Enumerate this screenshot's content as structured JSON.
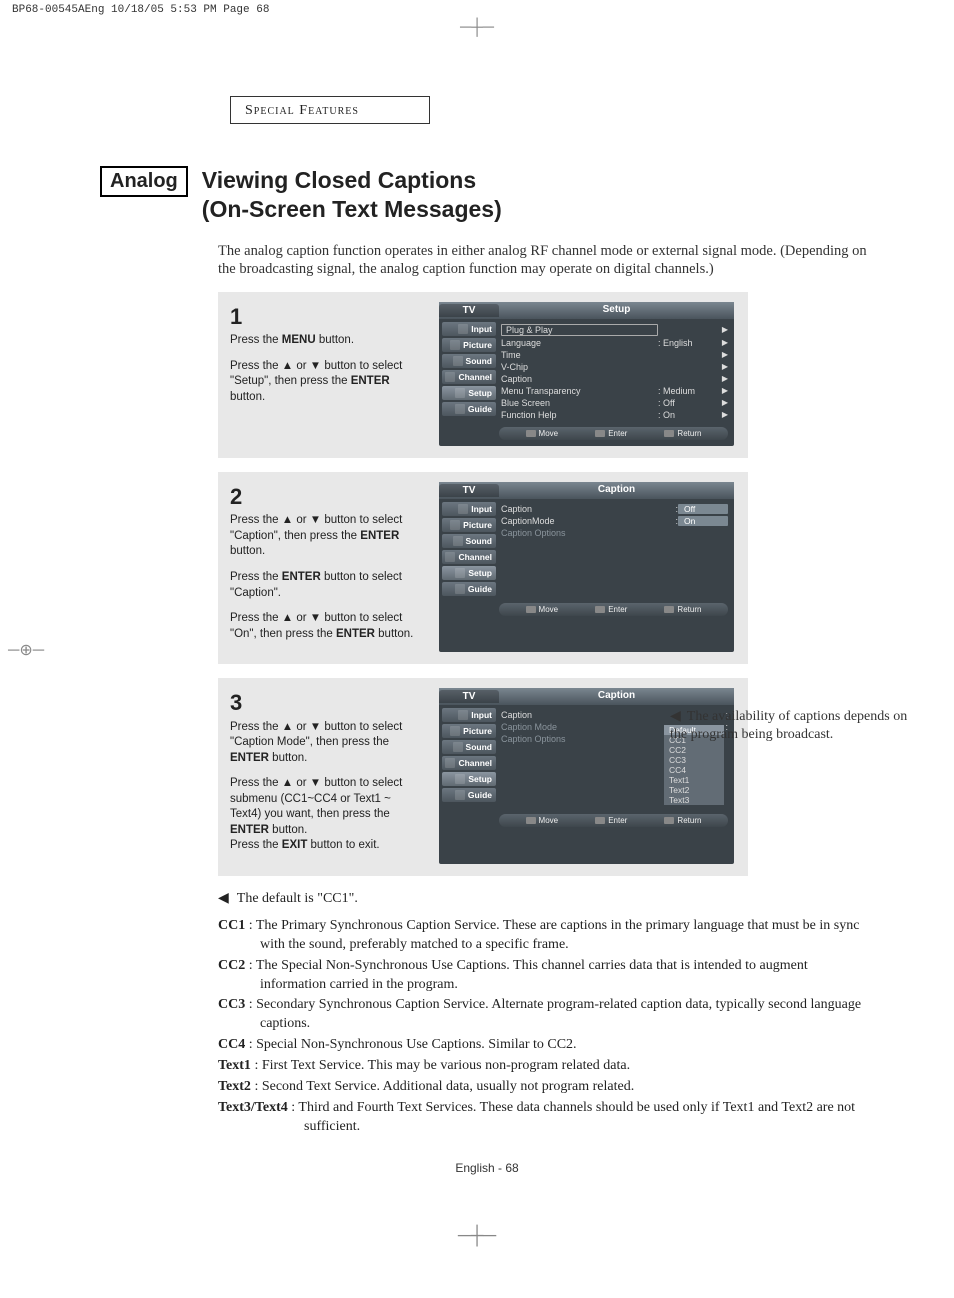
{
  "print": {
    "header": "BP68-00545AEng  10/18/05  5:53 PM  Page 68"
  },
  "section": {
    "title": "Special Features"
  },
  "badge": {
    "text": "Analog"
  },
  "title": {
    "line1": "Viewing Closed Captions",
    "line2": "(On-Screen Text Messages)"
  },
  "intro": "The analog caption function operates in either analog RF channel mode or external signal mode. (Depending on the broadcasting signal, the analog caption function may operate on digital channels.)",
  "steps": [
    {
      "num": "1",
      "paras": [
        "Press the <b>MENU</b> button.",
        "Press the ▲ or ▼ button to select \"Setup\", then press the <b>ENTER</b> button."
      ],
      "osd": {
        "tab": "TV",
        "title": "Setup",
        "side": [
          "Input",
          "Picture",
          "Sound",
          "Channel",
          "Setup",
          "Guide"
        ],
        "sideSel": 4,
        "rows": [
          {
            "lbl": "Plug & Play",
            "val": "",
            "arr": "▶",
            "box": true
          },
          {
            "lbl": "Language",
            "val": ": English",
            "arr": "▶"
          },
          {
            "lbl": "Time",
            "val": "",
            "arr": "▶"
          },
          {
            "lbl": "V-Chip",
            "val": "",
            "arr": "▶"
          },
          {
            "lbl": "Caption",
            "val": "",
            "arr": "▶"
          },
          {
            "lbl": "Menu Transparency",
            "val": ": Medium",
            "arr": "▶"
          },
          {
            "lbl": "Blue Screen",
            "val": ": Off",
            "arr": "▶"
          },
          {
            "lbl": "Function Help",
            "val": ": On",
            "arr": "▶"
          }
        ],
        "footer": [
          "Move",
          "Enter",
          "Return"
        ]
      }
    },
    {
      "num": "2",
      "paras": [
        "Press the ▲ or ▼ button to select \"Caption\", then press the <b>ENTER</b> button.",
        "Press the <b>ENTER</b> button to select \"Caption\".",
        "Press the ▲ or ▼ button to select \"On\", then press the <b>ENTER</b> button."
      ],
      "osd": {
        "tab": "TV",
        "title": "Caption",
        "side": [
          "Input",
          "Picture",
          "Sound",
          "Channel",
          "Setup",
          "Guide"
        ],
        "sideSel": 4,
        "rows": [
          {
            "lbl": "Caption",
            "pill": "Off",
            "colon": ":"
          },
          {
            "lbl": "CaptionMode",
            "pill": "On",
            "colon": ":"
          },
          {
            "lbl": "Caption Options",
            "dim": true
          }
        ],
        "footer": [
          "Move",
          "Enter",
          "Return"
        ],
        "tall": true
      }
    },
    {
      "num": "3",
      "paras": [
        "Press the ▲ or ▼ button to select \"Caption Mode\", then press the <b>ENTER</b> button.",
        "Press the ▲ or ▼ button to select  submenu (CC1~CC4 or Text1 ~ Text4) you want, then press the <b>ENTER</b> button.",
        "Press the <b>EXIT</b> button to exit."
      ],
      "paraSpacing": [
        true,
        false,
        true
      ],
      "osd": {
        "tab": "TV",
        "title": "Caption",
        "side": [
          "Input",
          "Picture",
          "Sound",
          "Channel",
          "Setup",
          "Guide"
        ],
        "sideSel": 4,
        "rows": [
          {
            "lbl": "Caption",
            "colon": ":",
            "drop": true,
            "opts": [
              "Default",
              "CC1",
              "CC2",
              "CC3",
              "CC4",
              "Text1",
              "Text2",
              "Text3"
            ],
            "optSel": 0
          },
          {
            "lbl": "Caption Mode",
            "colon": ":",
            "dim": true
          },
          {
            "lbl": "Caption Options",
            "dim": true
          }
        ],
        "footer": [
          "Move",
          "Enter",
          "Return"
        ]
      }
    }
  ],
  "sideNote": "The availability of captions depends on the program being broadcast.",
  "note1": "The default is \"CC1\".",
  "defs": [
    {
      "k": "CC1",
      "t": ": The Primary Synchronous Caption Service. These are captions in the primary language that must be in sync with the sound, preferably matched to a specific frame."
    },
    {
      "k": "CC2",
      "t": ": The Special Non-Synchronous Use Captions. This channel carries data that is intended to augment information carried in the program."
    },
    {
      "k": "CC3",
      "t": ": Secondary Synchronous Caption Service. Alternate program-related caption data, typically second language captions."
    },
    {
      "k": "CC4",
      "t": ": Special Non-Synchronous Use Captions. Similar to CC2."
    },
    {
      "k": "Text1",
      "t": ": First Text Service. This may be various non-program related data."
    },
    {
      "k": "Text2",
      "t": ": Second Text Service. Additional data, usually not program related."
    },
    {
      "k": "Text3/Text4",
      "t": ": Third and Fourth Text Services. These data channels should be used only if Text1 and Text2 are not sufficient.",
      "lg": true
    }
  ],
  "footer": "English - 68"
}
